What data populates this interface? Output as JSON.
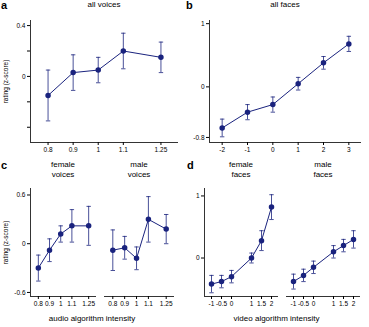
{
  "chart_data": [
    {
      "type": "line",
      "title": "all voices",
      "annotations": [
        "a"
      ],
      "x": [
        0.8,
        0.9,
        1.0,
        1.1,
        1.25
      ],
      "values": [
        -0.15,
        0.03,
        0.05,
        0.2,
        0.15
      ],
      "yerr": [
        0.2,
        0.14,
        0.1,
        0.14,
        0.12
      ],
      "color": "#1a237e",
      "marker": "circle",
      "line_style": "solid",
      "xlim": [
        0.73,
        1.32
      ],
      "ylim": [
        -0.52,
        0.44
      ],
      "xticks": [
        0.8,
        0.9,
        1,
        1.1,
        1.25
      ],
      "yticks": [
        {
          "value": -0.4,
          "label": null
        },
        {
          "value": -0.2,
          "label": null
        },
        0,
        {
          "value": 0.2,
          "label": null
        },
        0.4
      ],
      "ylabel": "rating (z-score)"
    },
    {
      "type": "line",
      "title": "all faces",
      "annotations": [
        "b"
      ],
      "x": [
        -2,
        -1,
        0,
        1,
        2,
        3
      ],
      "values": [
        -0.65,
        -0.4,
        -0.28,
        0.05,
        0.38,
        0.68
      ],
      "yerr": [
        0.14,
        0.12,
        0.12,
        0.1,
        0.1,
        0.12
      ],
      "color": "#1a237e",
      "marker": "circle",
      "line_style": "solid",
      "xlim": [
        -2.5,
        3.5
      ],
      "ylim": [
        -0.88,
        1.05
      ],
      "xticks": [
        -2,
        -1,
        0,
        1,
        2,
        3
      ],
      "yticks": [
        -0.8,
        0,
        1
      ]
    },
    {
      "type": "line",
      "title": "female\nvoices",
      "annotations": [
        "c"
      ],
      "x": [
        0.8,
        0.9,
        1.0,
        1.1,
        1.25
      ],
      "values": [
        -0.3,
        -0.08,
        0.12,
        0.22,
        0.22
      ],
      "yerr": [
        0.16,
        0.14,
        0.1,
        0.2,
        0.24
      ],
      "color": "#1a237e",
      "marker": "circle",
      "line_style": "solid",
      "xlim": [
        0.73,
        1.32
      ],
      "ylim": [
        -0.65,
        0.68
      ],
      "xticks": [
        0.8,
        0.9,
        1,
        1.1,
        1.25
      ],
      "yticks": [
        -0.6,
        0,
        0.6
      ],
      "ylabel": "rating (z-score)",
      "xlabel": "audio algorithm intensity"
    },
    {
      "type": "line",
      "title": "male\nvoices",
      "x": [
        0.8,
        0.9,
        1.0,
        1.1,
        1.25
      ],
      "values": [
        -0.08,
        -0.05,
        -0.18,
        0.3,
        0.18
      ],
      "yerr": [
        0.25,
        0.14,
        0.14,
        0.28,
        0.18
      ],
      "color": "#1a237e",
      "marker": "circle",
      "line_style": "solid",
      "xlim": [
        0.73,
        1.32
      ],
      "ylim": [
        -0.65,
        0.68
      ],
      "xticks": [
        0.8,
        0.9,
        1,
        1.1,
        1.25
      ],
      "tick_labels": "x"
    },
    {
      "type": "line",
      "title": "female\nfaces",
      "annotations": [
        "d"
      ],
      "x": [
        -1,
        -0.5,
        0,
        1,
        1.5,
        2
      ],
      "values": [
        -0.42,
        -0.38,
        -0.3,
        0.0,
        0.28,
        0.82
      ],
      "yerr": [
        0.14,
        0.1,
        0.1,
        0.08,
        0.16,
        0.2
      ],
      "color": "#1a237e",
      "marker": "circle",
      "line_style": "solid",
      "xlim": [
        -1.35,
        2.35
      ],
      "ylim": [
        -0.62,
        1.12
      ],
      "xticks": [
        -1,
        -0.5,
        0,
        1,
        1.5,
        2
      ],
      "yticks": [
        0,
        1
      ],
      "xlabel": "video algorithm intensity"
    },
    {
      "type": "line",
      "title": "male\nfaces",
      "x": [
        -1,
        -0.5,
        0,
        1,
        1.5,
        2
      ],
      "values": [
        -0.38,
        -0.28,
        -0.15,
        0.1,
        0.2,
        0.3
      ],
      "yerr": [
        0.12,
        0.1,
        0.1,
        0.1,
        0.1,
        0.14
      ],
      "color": "#1a237e",
      "marker": "circle",
      "line_style": "solid",
      "xlim": [
        -1.35,
        2.35
      ],
      "ylim": [
        -0.62,
        1.12
      ],
      "xticks": [
        -1,
        -0.5,
        0,
        1,
        1.5,
        2
      ],
      "tick_labels": "x"
    }
  ]
}
